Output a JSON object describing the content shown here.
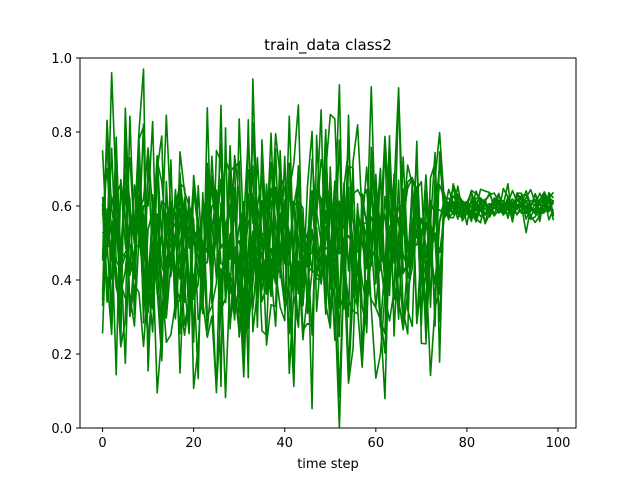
{
  "chart_data": {
    "type": "line",
    "title": "train_data class2",
    "xlabel": "time step",
    "ylabel": "",
    "xlim": [
      -4.95,
      103.95
    ],
    "ylim": [
      0.0,
      1.0
    ],
    "xticks": [
      0,
      20,
      40,
      60,
      80,
      100
    ],
    "yticks": [
      0.0,
      0.2,
      0.4,
      0.6,
      0.8,
      1.0
    ],
    "xtick_labels": [
      "0",
      "20",
      "40",
      "60",
      "80",
      "100"
    ],
    "ytick_labels": [
      "0.0",
      "0.2",
      "0.4",
      "0.6",
      "0.8",
      "1.0"
    ],
    "series_color": "#008000",
    "grid": false,
    "legend": "none",
    "series_description": "Many overlapping time series of 100 steps each; steps 0-74 fluctuate widely between about 0.0 and 0.97, steps 75-99 settle to a narrow band of about 0.52-0.66 around 0.6.",
    "series_count": 14,
    "noisy_segment": {
      "x_start": 0,
      "x_end": 74,
      "y_min": 0.0,
      "y_max": 0.97,
      "y_center": 0.5
    },
    "stable_segment": {
      "x_start": 75,
      "x_end": 99,
      "y_min": 0.52,
      "y_max": 0.66,
      "y_center": 0.6
    }
  }
}
